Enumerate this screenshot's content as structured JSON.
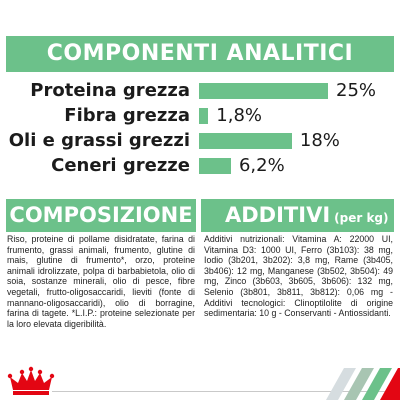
{
  "analytic": {
    "title": "COMPONENTI ANALITICI",
    "rows": [
      {
        "label": "Proteina grezza",
        "value": "25%",
        "percent": 25
      },
      {
        "label": "Fibra grezza",
        "value": "1,8%",
        "percent": 1.8
      },
      {
        "label": "Oli e grassi grezzi",
        "value": "18%",
        "percent": 18
      },
      {
        "label": "Ceneri grezze",
        "value": "6,2%",
        "percent": 6.2
      }
    ]
  },
  "composition": {
    "title": "COMPOSIZIONE",
    "text": "Riso, proteine di pollame disidratate, farina di frumento, grassi animali, frumento, glutine di mais, glutine di frumento*, orzo, proteine animali idrolizzate, polpa di barbabietola, olio di soia, sostanze minerali, olio di pesce, fibre vegetali, frutto-oligosaccaridi, lieviti (fonte di mannano-oligosaccaridi), olio di borragine, farina di tagete. *L.I.P.: proteine selezionate per la loro elevata digeribilità."
  },
  "additives": {
    "title": "ADDITIVI",
    "subtitle": "(per kg)",
    "text": "Additivi nutrizionali: Vitamina A: 22000 UI, Vitamina D3: 1000 UI, Ferro (3b103): 38 mg, Iodio (3b201, 3b202): 3,8 mg, Rame (3b405, 3b406): 12 mg, Manganese (3b502, 3b504): 49 mg, Zinco (3b603, 3b605, 3b606): 132 mg, Selenio (3b801, 3b811, 3b812): 0,06 mg - Additivi tecnologici: Clinoptilolite di origine sedimentaria: 10 g - Conservanti - Antiossidanti."
  },
  "footer": {
    "logo_icon": "royal-canin-crown-icon",
    "stripe_colors": [
      "#d6dde0",
      "#a8c5b2",
      "#6cc18a",
      "#e30613"
    ]
  }
}
